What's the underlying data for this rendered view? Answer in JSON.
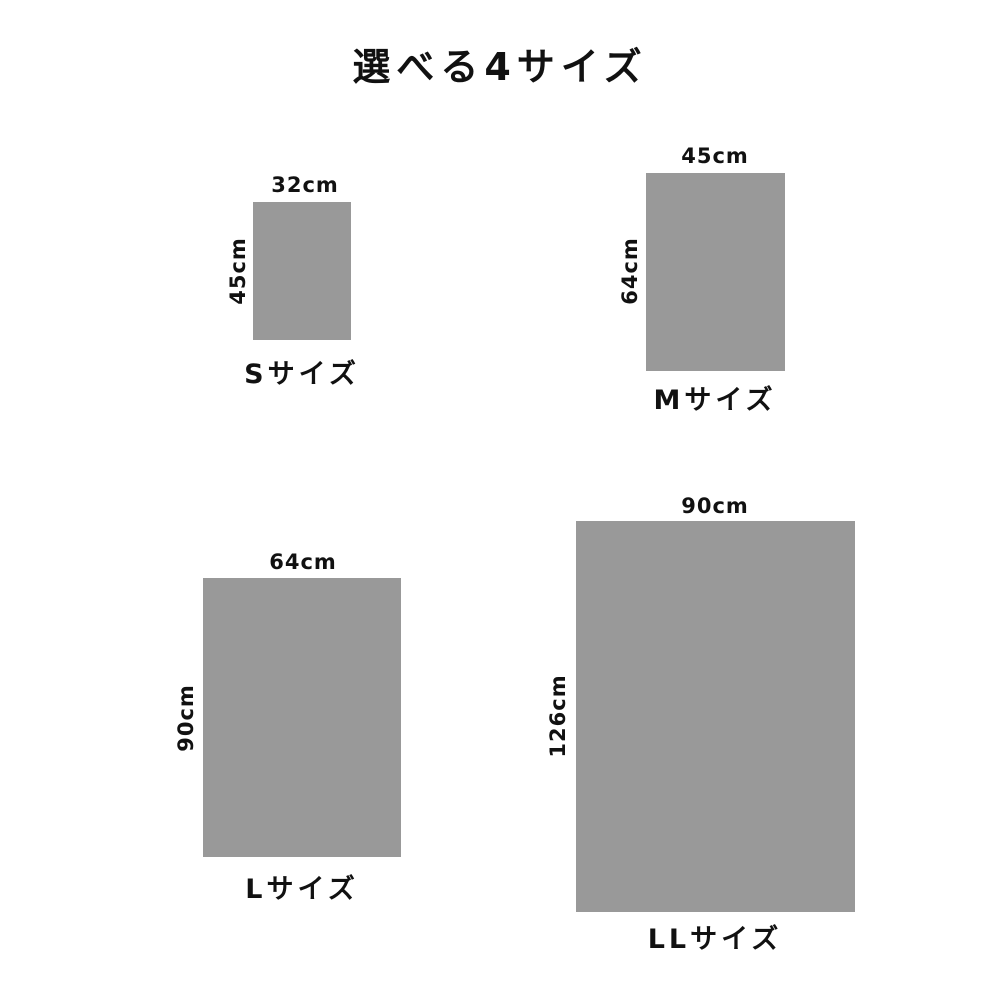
{
  "title": "選べる4サイズ",
  "fill_color": "#999999",
  "sizes": [
    {
      "name": "Sサイズ",
      "width": "32cm",
      "height": "45cm"
    },
    {
      "name": "Mサイズ",
      "width": "45cm",
      "height": "64cm"
    },
    {
      "name": "Lサイズ",
      "width": "64cm",
      "height": "90cm"
    },
    {
      "name": "LLサイズ",
      "width": "90cm",
      "height": "126cm"
    }
  ]
}
